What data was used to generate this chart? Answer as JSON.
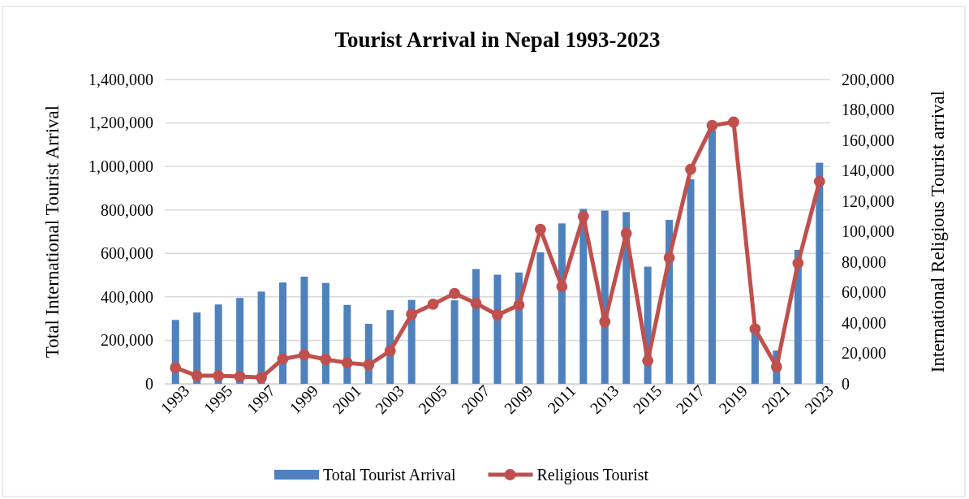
{
  "chart_data": {
    "type": "bar",
    "title": "Tourist Arrival in Nepal 1993-2023",
    "ylabel": "Total International  Tourist Arrival",
    "y2label": "International Religious Tourist arrival",
    "categories": [
      "1993",
      null,
      "1995",
      null,
      "1997",
      null,
      "1999",
      null,
      "2001",
      null,
      "2003",
      null,
      "2005",
      null,
      "2007",
      null,
      "2009",
      null,
      "2011",
      null,
      "2013",
      null,
      "2015",
      null,
      "2017",
      null,
      "2019",
      null,
      "2021",
      null,
      "2023"
    ],
    "series": [
      {
        "name": "Total Tourist Arrival",
        "color": "#4f81bd",
        "values": [
          294000,
          328000,
          365000,
          395000,
          424000,
          466000,
          493000,
          464000,
          363000,
          276000,
          339000,
          386000,
          null,
          384000,
          528000,
          502000,
          512000,
          605000,
          738000,
          805000,
          797000,
          790000,
          539000,
          754000,
          941000,
          1167000,
          null,
          230000,
          153000,
          616000,
          1017000
        ]
      },
      {
        "name": "Religious Tourist",
        "type": "line",
        "axis": "y2",
        "color": "#c0504d",
        "marker": "circle",
        "values": [
          10600,
          5300,
          5300,
          4800,
          4100,
          16300,
          19000,
          16000,
          13800,
          12400,
          21600,
          45600,
          52300,
          59400,
          52900,
          45200,
          51800,
          101500,
          63900,
          110000,
          40800,
          98800,
          15100,
          82800,
          141000,
          169800,
          172000,
          36000,
          11200,
          79300,
          133000
        ]
      }
    ],
    "ylim": [
      0,
      1400000
    ],
    "yticks": [
      {
        "value": 0,
        "label": "0"
      },
      {
        "value": 200000,
        "label": "200,000"
      },
      {
        "value": 400000,
        "label": "400,000"
      },
      {
        "value": 600000,
        "label": "600,000"
      },
      {
        "value": 800000,
        "label": "800,000"
      },
      {
        "value": 1000000,
        "label": "1,000,000"
      },
      {
        "value": 1200000,
        "label": "1,200,000"
      },
      {
        "value": 1400000,
        "label": "1,400,000"
      }
    ],
    "y2lim": [
      0,
      200000
    ],
    "y2ticks": [
      {
        "value": 0,
        "label": "0"
      },
      {
        "value": 20000,
        "label": "20,000"
      },
      {
        "value": 40000,
        "label": "40,000"
      },
      {
        "value": 60000,
        "label": "60,000"
      },
      {
        "value": 80000,
        "label": "80,000"
      },
      {
        "value": 100000,
        "label": "100,000"
      },
      {
        "value": 120000,
        "label": "120,000"
      },
      {
        "value": 140000,
        "label": "140,000"
      },
      {
        "value": 160000,
        "label": "160,000"
      },
      {
        "value": 180000,
        "label": "180,000"
      },
      {
        "value": 200000,
        "label": "200,000"
      }
    ],
    "grid": "y",
    "legend": "bottom"
  }
}
